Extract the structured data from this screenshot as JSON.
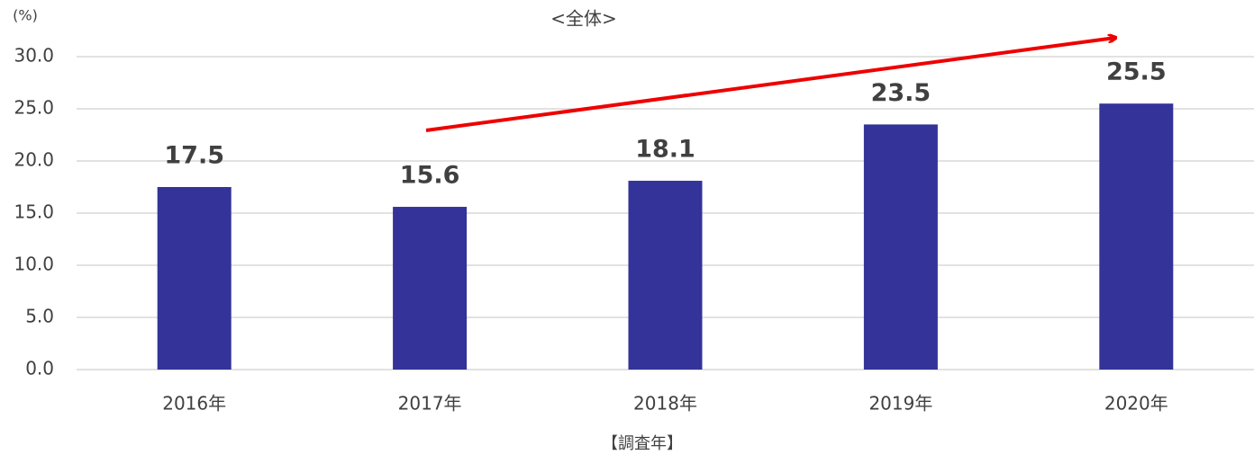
{
  "chart_data": {
    "type": "bar",
    "title": "<全体>",
    "y_unit": "(%)",
    "x_label": "【調査年】",
    "categories": [
      "2016年",
      "2017年",
      "2018年",
      "2019年",
      "2020年"
    ],
    "values": [
      17.5,
      15.6,
      18.1,
      23.5,
      25.5
    ],
    "color": "#333399",
    "ylim": [
      0,
      30
    ],
    "yticks": [
      {
        "value": 0,
        "label": "0.0"
      },
      {
        "value": 5,
        "label": "5.0"
      },
      {
        "value": 10,
        "label": "10.0"
      },
      {
        "value": 15,
        "label": "15.0"
      },
      {
        "value": 20,
        "label": "20.0"
      },
      {
        "value": 25,
        "label": "25.0"
      },
      {
        "value": 30,
        "label": "30.0"
      }
    ],
    "grid": true
  }
}
